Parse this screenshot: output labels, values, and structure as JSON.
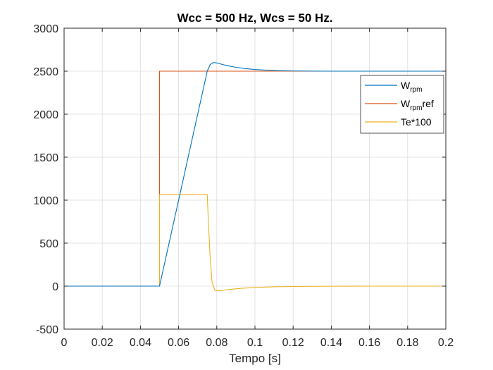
{
  "chart_data": {
    "type": "line",
    "title": "Wcc = 500 Hz, Wcs = 50 Hz.",
    "xlabel": "Tempo [s]",
    "ylabel": "",
    "xlim": [
      0,
      0.2
    ],
    "ylim": [
      -500,
      3000
    ],
    "xticks": [
      0,
      0.02,
      0.04,
      0.06,
      0.08,
      0.1,
      0.12,
      0.14,
      0.16,
      0.18,
      0.2
    ],
    "xtick_labels": [
      "0",
      "0.02",
      "0.04",
      "0.06",
      "0.08",
      "0.1",
      "0.12",
      "0.14",
      "0.16",
      "0.18",
      "0.2"
    ],
    "yticks": [
      -500,
      0,
      500,
      1000,
      1500,
      2000,
      2500,
      3000
    ],
    "ytick_labels": [
      "-500",
      "0",
      "500",
      "1000",
      "1500",
      "2000",
      "2500",
      "3000"
    ],
    "grid": true,
    "legend_position": "top-right",
    "series": [
      {
        "name": "W_rpm",
        "legend_main": "W",
        "legend_sub": "rpm",
        "legend_suffix": "",
        "color": "#0072BD",
        "x": [
          0,
          0.05,
          0.075,
          0.0765,
          0.078,
          0.0795,
          0.081,
          0.083,
          0.086,
          0.09,
          0.095,
          0.1,
          0.105,
          0.11,
          0.115,
          0.12,
          0.13,
          0.14,
          0.16,
          0.18,
          0.2
        ],
        "y": [
          0,
          0,
          2500,
          2575,
          2600,
          2598,
          2590,
          2578,
          2562,
          2545,
          2530,
          2520,
          2513,
          2508,
          2505,
          2503,
          2501,
          2500,
          2500,
          2500,
          2500
        ]
      },
      {
        "name": "W_rpm ref",
        "legend_main": "W",
        "legend_sub": "rpm",
        "legend_suffix": "ref",
        "color": "#D95319",
        "x": [
          0,
          0.05,
          0.05,
          0.2
        ],
        "y": [
          0,
          0,
          2500,
          2500
        ]
      },
      {
        "name": "Te*100",
        "legend_main": "Te*100",
        "legend_sub": "",
        "legend_suffix": "",
        "color": "#EDB120",
        "x": [
          0,
          0.05,
          0.05,
          0.075,
          0.0755,
          0.0765,
          0.0775,
          0.079,
          0.081,
          0.084,
          0.088,
          0.093,
          0.1,
          0.11,
          0.12,
          0.14,
          0.16,
          0.2
        ],
        "y": [
          0,
          0,
          1065,
          1065,
          800,
          350,
          50,
          -50,
          -55,
          -45,
          -35,
          -25,
          -16,
          -8,
          -4,
          -1,
          0,
          0
        ]
      }
    ]
  }
}
